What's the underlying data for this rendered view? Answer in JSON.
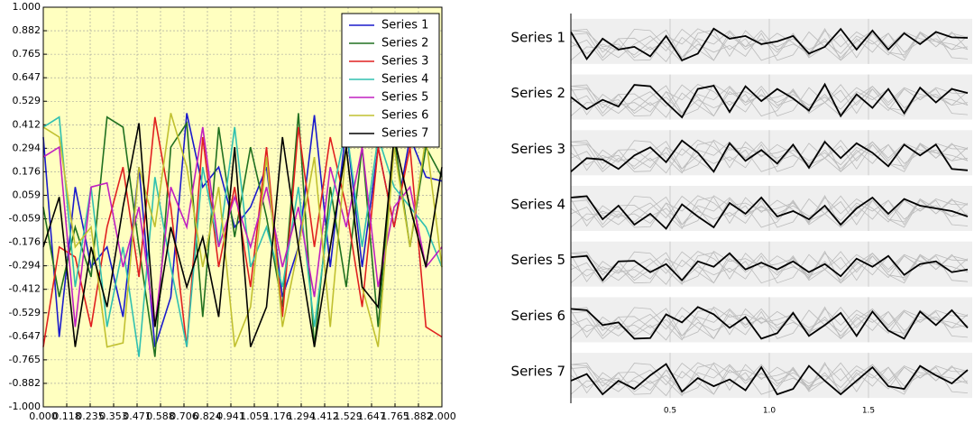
{
  "chart_data": {
    "type": "line",
    "x": [
      0,
      0.08,
      0.16,
      0.24,
      0.32,
      0.4,
      0.48,
      0.56,
      0.64,
      0.72,
      0.8,
      0.88,
      0.96,
      1.04,
      1.12,
      1.2,
      1.28,
      1.36,
      1.44,
      1.52,
      1.6,
      1.68,
      1.76,
      1.84,
      1.92,
      2.0
    ],
    "series": [
      {
        "name": "Series 1",
        "color": "#1a1acc",
        "values": [
          0.35,
          -0.65,
          0.1,
          -0.3,
          -0.2,
          -0.55,
          0.2,
          -0.7,
          -0.45,
          0.47,
          0.1,
          0.2,
          -0.1,
          0.0,
          0.2,
          -0.45,
          -0.2,
          0.46,
          -0.3,
          0.4,
          -0.3,
          0.3,
          -0.1,
          0.35,
          0.15,
          0.13
        ]
      },
      {
        "name": "Series 2",
        "color": "#207020",
        "values": [
          0.0,
          -0.45,
          -0.1,
          -0.35,
          0.45,
          0.4,
          -0.2,
          -0.75,
          0.3,
          0.42,
          -0.55,
          0.4,
          -0.15,
          0.3,
          -0.05,
          -0.5,
          0.47,
          -0.7,
          0.1,
          -0.4,
          0.3,
          -0.6,
          0.35,
          -0.2,
          0.3,
          0.15
        ]
      },
      {
        "name": "Series 3",
        "color": "#e02020",
        "values": [
          -0.7,
          -0.2,
          -0.25,
          -0.6,
          -0.1,
          0.2,
          -0.35,
          0.45,
          0.0,
          -0.7,
          0.35,
          -0.3,
          0.1,
          -0.4,
          0.3,
          -0.55,
          0.4,
          -0.2,
          0.35,
          0.0,
          -0.5,
          0.3,
          -0.1,
          0.3,
          -0.6,
          -0.65
        ]
      },
      {
        "name": "Series 4",
        "color": "#30c0b0",
        "values": [
          0.4,
          0.45,
          -0.4,
          0.1,
          -0.6,
          -0.2,
          -0.75,
          0.15,
          -0.3,
          -0.7,
          0.2,
          -0.2,
          0.4,
          -0.3,
          -0.1,
          -0.4,
          0.1,
          -0.6,
          0.0,
          0.4,
          -0.2,
          0.35,
          0.1,
          0.0,
          -0.1,
          -0.3
        ]
      },
      {
        "name": "Series 5",
        "color": "#c020c0",
        "values": [
          0.25,
          0.3,
          -0.6,
          0.1,
          0.12,
          -0.3,
          0.0,
          -0.6,
          0.1,
          -0.1,
          0.4,
          -0.2,
          0.05,
          -0.2,
          0.1,
          -0.3,
          0.0,
          -0.45,
          0.2,
          -0.1,
          0.3,
          -0.4,
          0.0,
          0.1,
          -0.3,
          -0.2
        ]
      },
      {
        "name": "Series 6",
        "color": "#c0c030",
        "values": [
          0.4,
          0.35,
          -0.2,
          -0.1,
          -0.7,
          -0.68,
          0.2,
          -0.1,
          0.47,
          0.2,
          -0.3,
          0.1,
          -0.7,
          -0.5,
          0.25,
          -0.6,
          -0.2,
          0.25,
          -0.6,
          0.3,
          -0.4,
          -0.7,
          0.3,
          -0.2,
          0.35,
          -0.3
        ]
      },
      {
        "name": "Series 7",
        "color": "#000000",
        "values": [
          -0.2,
          0.05,
          -0.7,
          -0.2,
          -0.5,
          0.0,
          0.42,
          -0.6,
          -0.1,
          -0.4,
          -0.15,
          -0.55,
          0.3,
          -0.7,
          -0.5,
          0.35,
          -0.2,
          -0.7,
          -0.2,
          0.3,
          -0.4,
          -0.5,
          0.35,
          0.0,
          -0.3,
          0.2
        ]
      }
    ],
    "xlim": [
      0,
      2
    ],
    "ylim": [
      -1,
      1
    ],
    "xticks": [
      {
        "value": 0,
        "label": "0.000"
      },
      {
        "value": 0.1176,
        "label": "0.118"
      },
      {
        "value": 0.2353,
        "label": "0.235"
      },
      {
        "value": 0.3529,
        "label": "0.353"
      },
      {
        "value": 0.4706,
        "label": "0.471"
      },
      {
        "value": 0.5882,
        "label": "0.588"
      },
      {
        "value": 0.7059,
        "label": "0.706"
      },
      {
        "value": 0.8235,
        "label": "0.824"
      },
      {
        "value": 0.9412,
        "label": "0.941"
      },
      {
        "value": 1.0588,
        "label": "1.059"
      },
      {
        "value": 1.1765,
        "label": "1.176"
      },
      {
        "value": 1.2941,
        "label": "1.294"
      },
      {
        "value": 1.4118,
        "label": "1.412"
      },
      {
        "value": 1.5294,
        "label": "1.529"
      },
      {
        "value": 1.6471,
        "label": "1.647"
      },
      {
        "value": 1.7647,
        "label": "1.765"
      },
      {
        "value": 1.8824,
        "label": "1.882"
      },
      {
        "value": 2,
        "label": "2.000"
      }
    ],
    "yticks": [
      {
        "value": -1,
        "label": "-1.000"
      },
      {
        "value": -0.8824,
        "label": "-0.882"
      },
      {
        "value": -0.7647,
        "label": "-0.765"
      },
      {
        "value": -0.6471,
        "label": "-0.647"
      },
      {
        "value": -0.5294,
        "label": "-0.529"
      },
      {
        "value": -0.4118,
        "label": "-0.412"
      },
      {
        "value": -0.2941,
        "label": "-0.294"
      },
      {
        "value": -0.1765,
        "label": "-0.176"
      },
      {
        "value": -0.0588,
        "label": "-0.059"
      },
      {
        "value": 0.0588,
        "label": "0.059"
      },
      {
        "value": 0.1765,
        "label": "0.176"
      },
      {
        "value": 0.2941,
        "label": "0.294"
      },
      {
        "value": 0.4118,
        "label": "0.412"
      },
      {
        "value": 0.5294,
        "label": "0.529"
      },
      {
        "value": 0.6471,
        "label": "0.647"
      },
      {
        "value": 0.7647,
        "label": "0.765"
      },
      {
        "value": 0.8824,
        "label": "0.882"
      },
      {
        "value": 1,
        "label": "1.000"
      }
    ],
    "grid": true,
    "legend": "upper right",
    "facet_xticks": [
      {
        "value": 0.5,
        "label": "0.5"
      },
      {
        "value": 1.0,
        "label": "1.0"
      },
      {
        "value": 1.5,
        "label": "1.5"
      }
    ]
  }
}
